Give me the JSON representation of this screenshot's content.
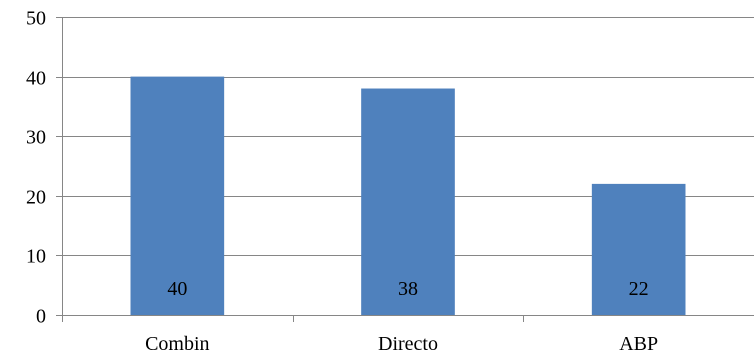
{
  "chart_data": {
    "type": "bar",
    "title": "",
    "xlabel": "",
    "ylabel": "",
    "categories": [
      "Combin",
      "Directo",
      "ABP"
    ],
    "values": [
      40,
      38,
      22
    ],
    "data_labels": [
      "40",
      "38",
      "22"
    ],
    "ylim": [
      0,
      50
    ],
    "yticks": [
      0,
      10,
      20,
      30,
      40,
      50
    ],
    "grid": true,
    "legend": "none",
    "colors": {
      "bar": "#4F81BD",
      "grid": "#868686",
      "axis": "#868686"
    }
  }
}
